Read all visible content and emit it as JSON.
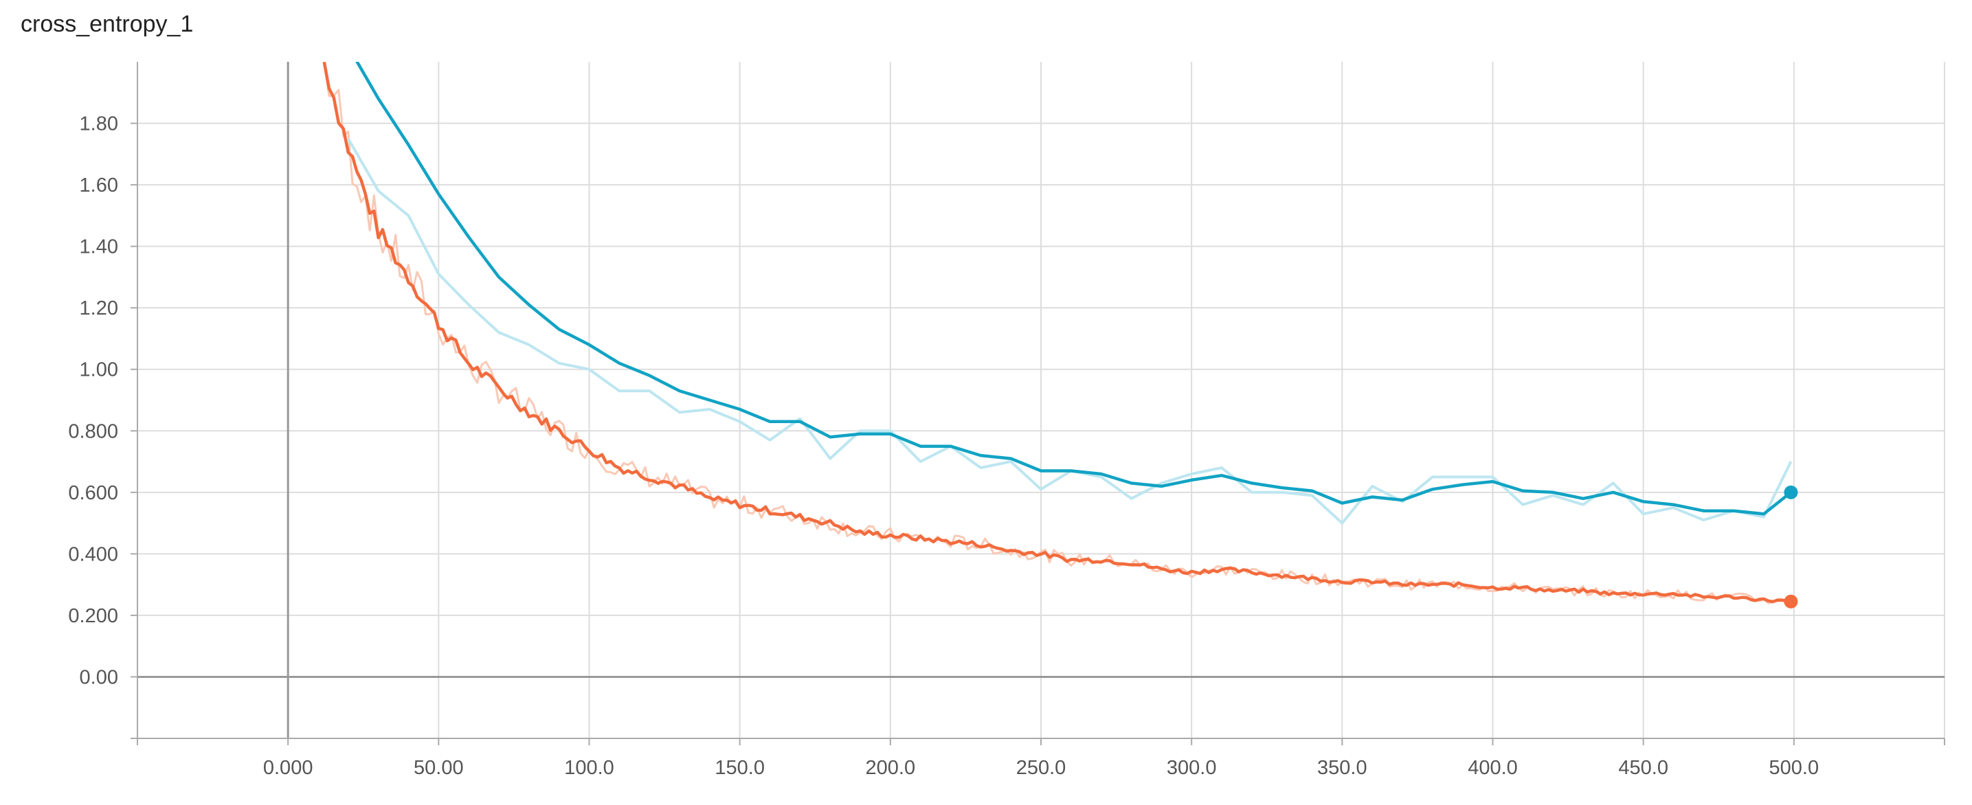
{
  "chart_data": {
    "type": "line",
    "title": "cross_entropy_1",
    "xlabel": "",
    "ylabel": "",
    "xlim": [
      -50,
      550
    ],
    "ylim": [
      -0.2,
      2.0
    ],
    "grid": true,
    "x_ticks": [
      0,
      50,
      100,
      150,
      200,
      250,
      300,
      350,
      400,
      450,
      500
    ],
    "x_tick_labels": [
      "0.000",
      "50.00",
      "100.0",
      "150.0",
      "200.0",
      "250.0",
      "300.0",
      "350.0",
      "400.0",
      "450.0",
      "500.0"
    ],
    "y_ticks": [
      0,
      0.2,
      0.4,
      0.6,
      0.8,
      1.0,
      1.2,
      1.4,
      1.6,
      1.8
    ],
    "y_tick_labels": [
      "0.00",
      "0.200",
      "0.400",
      "0.600",
      "0.800",
      "1.00",
      "1.20",
      "1.40",
      "1.60",
      "1.80"
    ],
    "colors": {
      "blue": "#12a3c4",
      "blue_raw": "#bde6f0",
      "orange": "#f26b3d",
      "orange_raw": "#f9c9b5",
      "grid": "#dddddd",
      "axis": "#999999"
    },
    "series": [
      {
        "color": "#12a3c4",
        "raw_color": "#bde6f0",
        "x": [
          20,
          30,
          40,
          50,
          60,
          70,
          80,
          90,
          100,
          110,
          120,
          130,
          140,
          150,
          160,
          170,
          180,
          190,
          200,
          210,
          220,
          230,
          240,
          250,
          260,
          270,
          280,
          290,
          300,
          310,
          320,
          330,
          340,
          350,
          360,
          370,
          380,
          390,
          400,
          410,
          420,
          430,
          440,
          450,
          460,
          470,
          480,
          490,
          499
        ],
        "values": [
          2.05,
          1.88,
          1.73,
          1.57,
          1.43,
          1.3,
          1.21,
          1.13,
          1.08,
          1.02,
          0.98,
          0.93,
          0.9,
          0.87,
          0.83,
          0.83,
          0.78,
          0.79,
          0.79,
          0.75,
          0.75,
          0.72,
          0.71,
          0.67,
          0.67,
          0.66,
          0.63,
          0.62,
          0.64,
          0.655,
          0.63,
          0.615,
          0.605,
          0.565,
          0.585,
          0.575,
          0.61,
          0.625,
          0.635,
          0.605,
          0.6,
          0.58,
          0.6,
          0.57,
          0.56,
          0.54,
          0.54,
          0.53,
          0.6
        ],
        "raw_values": [
          1.75,
          1.58,
          1.5,
          1.31,
          1.21,
          1.12,
          1.08,
          1.02,
          1.0,
          0.93,
          0.93,
          0.86,
          0.87,
          0.83,
          0.77,
          0.84,
          0.71,
          0.8,
          0.8,
          0.7,
          0.75,
          0.68,
          0.7,
          0.61,
          0.67,
          0.65,
          0.58,
          0.63,
          0.66,
          0.68,
          0.6,
          0.6,
          0.59,
          0.5,
          0.62,
          0.57,
          0.65,
          0.65,
          0.65,
          0.56,
          0.59,
          0.56,
          0.63,
          0.53,
          0.55,
          0.51,
          0.54,
          0.52,
          0.7
        ]
      },
      {
        "color": "#f26b3d",
        "raw_color": "#f9c9b5",
        "x": [
          12,
          20,
          30,
          40,
          50,
          60,
          70,
          80,
          90,
          100,
          110,
          120,
          130,
          140,
          150,
          160,
          170,
          180,
          190,
          200,
          210,
          220,
          230,
          240,
          250,
          260,
          270,
          280,
          290,
          300,
          310,
          320,
          330,
          340,
          350,
          360,
          370,
          380,
          390,
          400,
          410,
          420,
          430,
          440,
          450,
          460,
          470,
          480,
          490,
          499
        ],
        "values": [
          2.0,
          1.72,
          1.45,
          1.3,
          1.15,
          1.02,
          0.94,
          0.86,
          0.8,
          0.74,
          0.68,
          0.65,
          0.62,
          0.58,
          0.56,
          0.54,
          0.52,
          0.5,
          0.47,
          0.46,
          0.45,
          0.44,
          0.43,
          0.41,
          0.4,
          0.38,
          0.38,
          0.37,
          0.35,
          0.34,
          0.35,
          0.34,
          0.33,
          0.32,
          0.31,
          0.31,
          0.3,
          0.3,
          0.3,
          0.29,
          0.29,
          0.28,
          0.28,
          0.27,
          0.27,
          0.27,
          0.26,
          0.26,
          0.25,
          0.245
        ]
      }
    ]
  }
}
